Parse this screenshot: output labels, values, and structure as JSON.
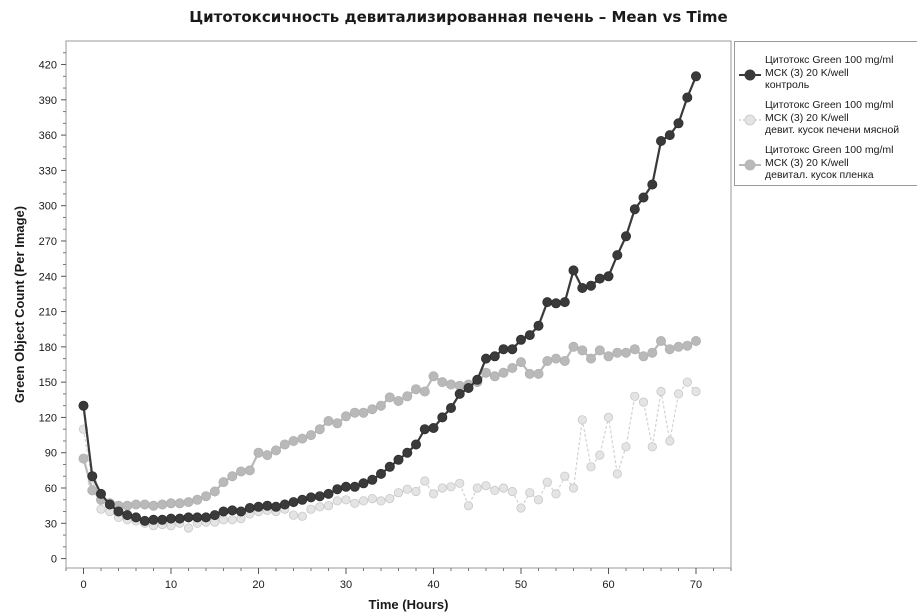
{
  "chart_data": {
    "type": "line",
    "title": "Цитотоксичность девитализированная печень – Mean vs Time",
    "xlabel": "Time (Hours)",
    "ylabel": "Green Object Count (Per Image)",
    "xlim": [
      -2,
      74
    ],
    "ylim": [
      -8,
      440
    ],
    "xticks": [
      0,
      10,
      20,
      30,
      40,
      50,
      60,
      70
    ],
    "yticks": [
      0,
      30,
      60,
      90,
      120,
      150,
      180,
      210,
      240,
      270,
      300,
      330,
      360,
      390,
      420
    ],
    "grid": false,
    "legend_position": "right",
    "series": [
      {
        "name": "Цитотокс Green 100 mg/ml\nМСК (3) 20 K/well\nконтроль",
        "color": "#3a3a3a",
        "x": [
          0,
          1,
          2,
          3,
          4,
          5,
          6,
          7,
          8,
          9,
          10,
          11,
          12,
          13,
          14,
          15,
          16,
          17,
          18,
          19,
          20,
          21,
          22,
          23,
          24,
          25,
          26,
          27,
          28,
          29,
          30,
          31,
          32,
          33,
          34,
          35,
          36,
          37,
          38,
          39,
          40,
          41,
          42,
          43,
          44,
          45,
          46,
          47,
          48,
          49,
          50,
          51,
          52,
          53,
          54,
          55,
          56,
          57,
          58,
          59,
          60,
          61,
          62,
          63,
          64,
          65,
          66,
          67,
          68,
          69,
          70
        ],
        "values": [
          130,
          70,
          55,
          46,
          40,
          37,
          35,
          32,
          33,
          33,
          34,
          34,
          35,
          35,
          35,
          37,
          40,
          41,
          40,
          43,
          44,
          45,
          44,
          46,
          48,
          50,
          52,
          53,
          55,
          59,
          61,
          61,
          64,
          67,
          72,
          78,
          84,
          90,
          97,
          110,
          111,
          120,
          128,
          140,
          145,
          152,
          170,
          172,
          178,
          178,
          186,
          190,
          198,
          218,
          217,
          218,
          245,
          230,
          232,
          238,
          240,
          258,
          274,
          297,
          307,
          318,
          355,
          360,
          370,
          392,
          410
        ]
      },
      {
        "name": "Цитотокс Green 100 mg/ml\nМСК (3) 20 K/well\nдевит. кусок печени мясной",
        "color": "#d2d2d2",
        "x": [
          0,
          1,
          2,
          3,
          4,
          5,
          6,
          7,
          8,
          9,
          10,
          11,
          12,
          13,
          14,
          15,
          16,
          17,
          18,
          19,
          20,
          21,
          22,
          23,
          24,
          25,
          26,
          27,
          28,
          29,
          30,
          31,
          32,
          33,
          34,
          35,
          36,
          37,
          38,
          39,
          40,
          41,
          42,
          43,
          44,
          45,
          46,
          47,
          48,
          49,
          50,
          51,
          52,
          53,
          54,
          55,
          56,
          57,
          58,
          59,
          60,
          61,
          62,
          63,
          64,
          65,
          66,
          67,
          68,
          69,
          70
        ],
        "values": [
          110,
          65,
          42,
          40,
          35,
          33,
          32,
          30,
          28,
          29,
          28,
          30,
          26,
          30,
          31,
          31,
          33,
          33,
          34,
          38,
          40,
          41,
          40,
          42,
          37,
          36,
          42,
          44,
          45,
          49,
          50,
          47,
          49,
          51,
          49,
          51,
          56,
          59,
          57,
          66,
          55,
          60,
          61,
          64,
          45,
          60,
          62,
          58,
          60,
          57,
          43,
          56,
          50,
          65,
          55,
          70,
          60,
          118,
          78,
          88,
          120,
          72,
          95,
          138,
          133,
          95,
          142,
          100,
          140,
          150,
          142
        ]
      },
      {
        "name": "Цитотокс Green 100 mg/ml\nМСК (3) 20 K/well\nдевитал. кусок пленка",
        "color": "#b9b9b9",
        "x": [
          0,
          1,
          2,
          3,
          4,
          5,
          6,
          7,
          8,
          9,
          10,
          11,
          12,
          13,
          14,
          15,
          16,
          17,
          18,
          19,
          20,
          21,
          22,
          23,
          24,
          25,
          26,
          27,
          28,
          29,
          30,
          31,
          32,
          33,
          34,
          35,
          36,
          37,
          38,
          39,
          40,
          41,
          42,
          43,
          44,
          45,
          46,
          47,
          48,
          49,
          50,
          51,
          52,
          53,
          54,
          55,
          56,
          57,
          58,
          59,
          60,
          61,
          62,
          63,
          64,
          65,
          66,
          67,
          68,
          69,
          70
        ],
        "values": [
          85,
          58,
          50,
          47,
          45,
          45,
          46,
          46,
          45,
          46,
          47,
          47,
          48,
          50,
          53,
          57,
          65,
          70,
          74,
          75,
          90,
          88,
          92,
          97,
          100,
          102,
          105,
          110,
          117,
          115,
          121,
          124,
          124,
          127,
          130,
          137,
          134,
          138,
          144,
          142,
          155,
          150,
          148,
          147,
          148,
          150,
          158,
          155,
          158,
          162,
          167,
          157,
          157,
          168,
          170,
          168,
          180,
          177,
          170,
          177,
          172,
          175,
          175,
          178,
          172,
          175,
          185,
          178,
          180,
          181,
          185
        ]
      }
    ]
  }
}
